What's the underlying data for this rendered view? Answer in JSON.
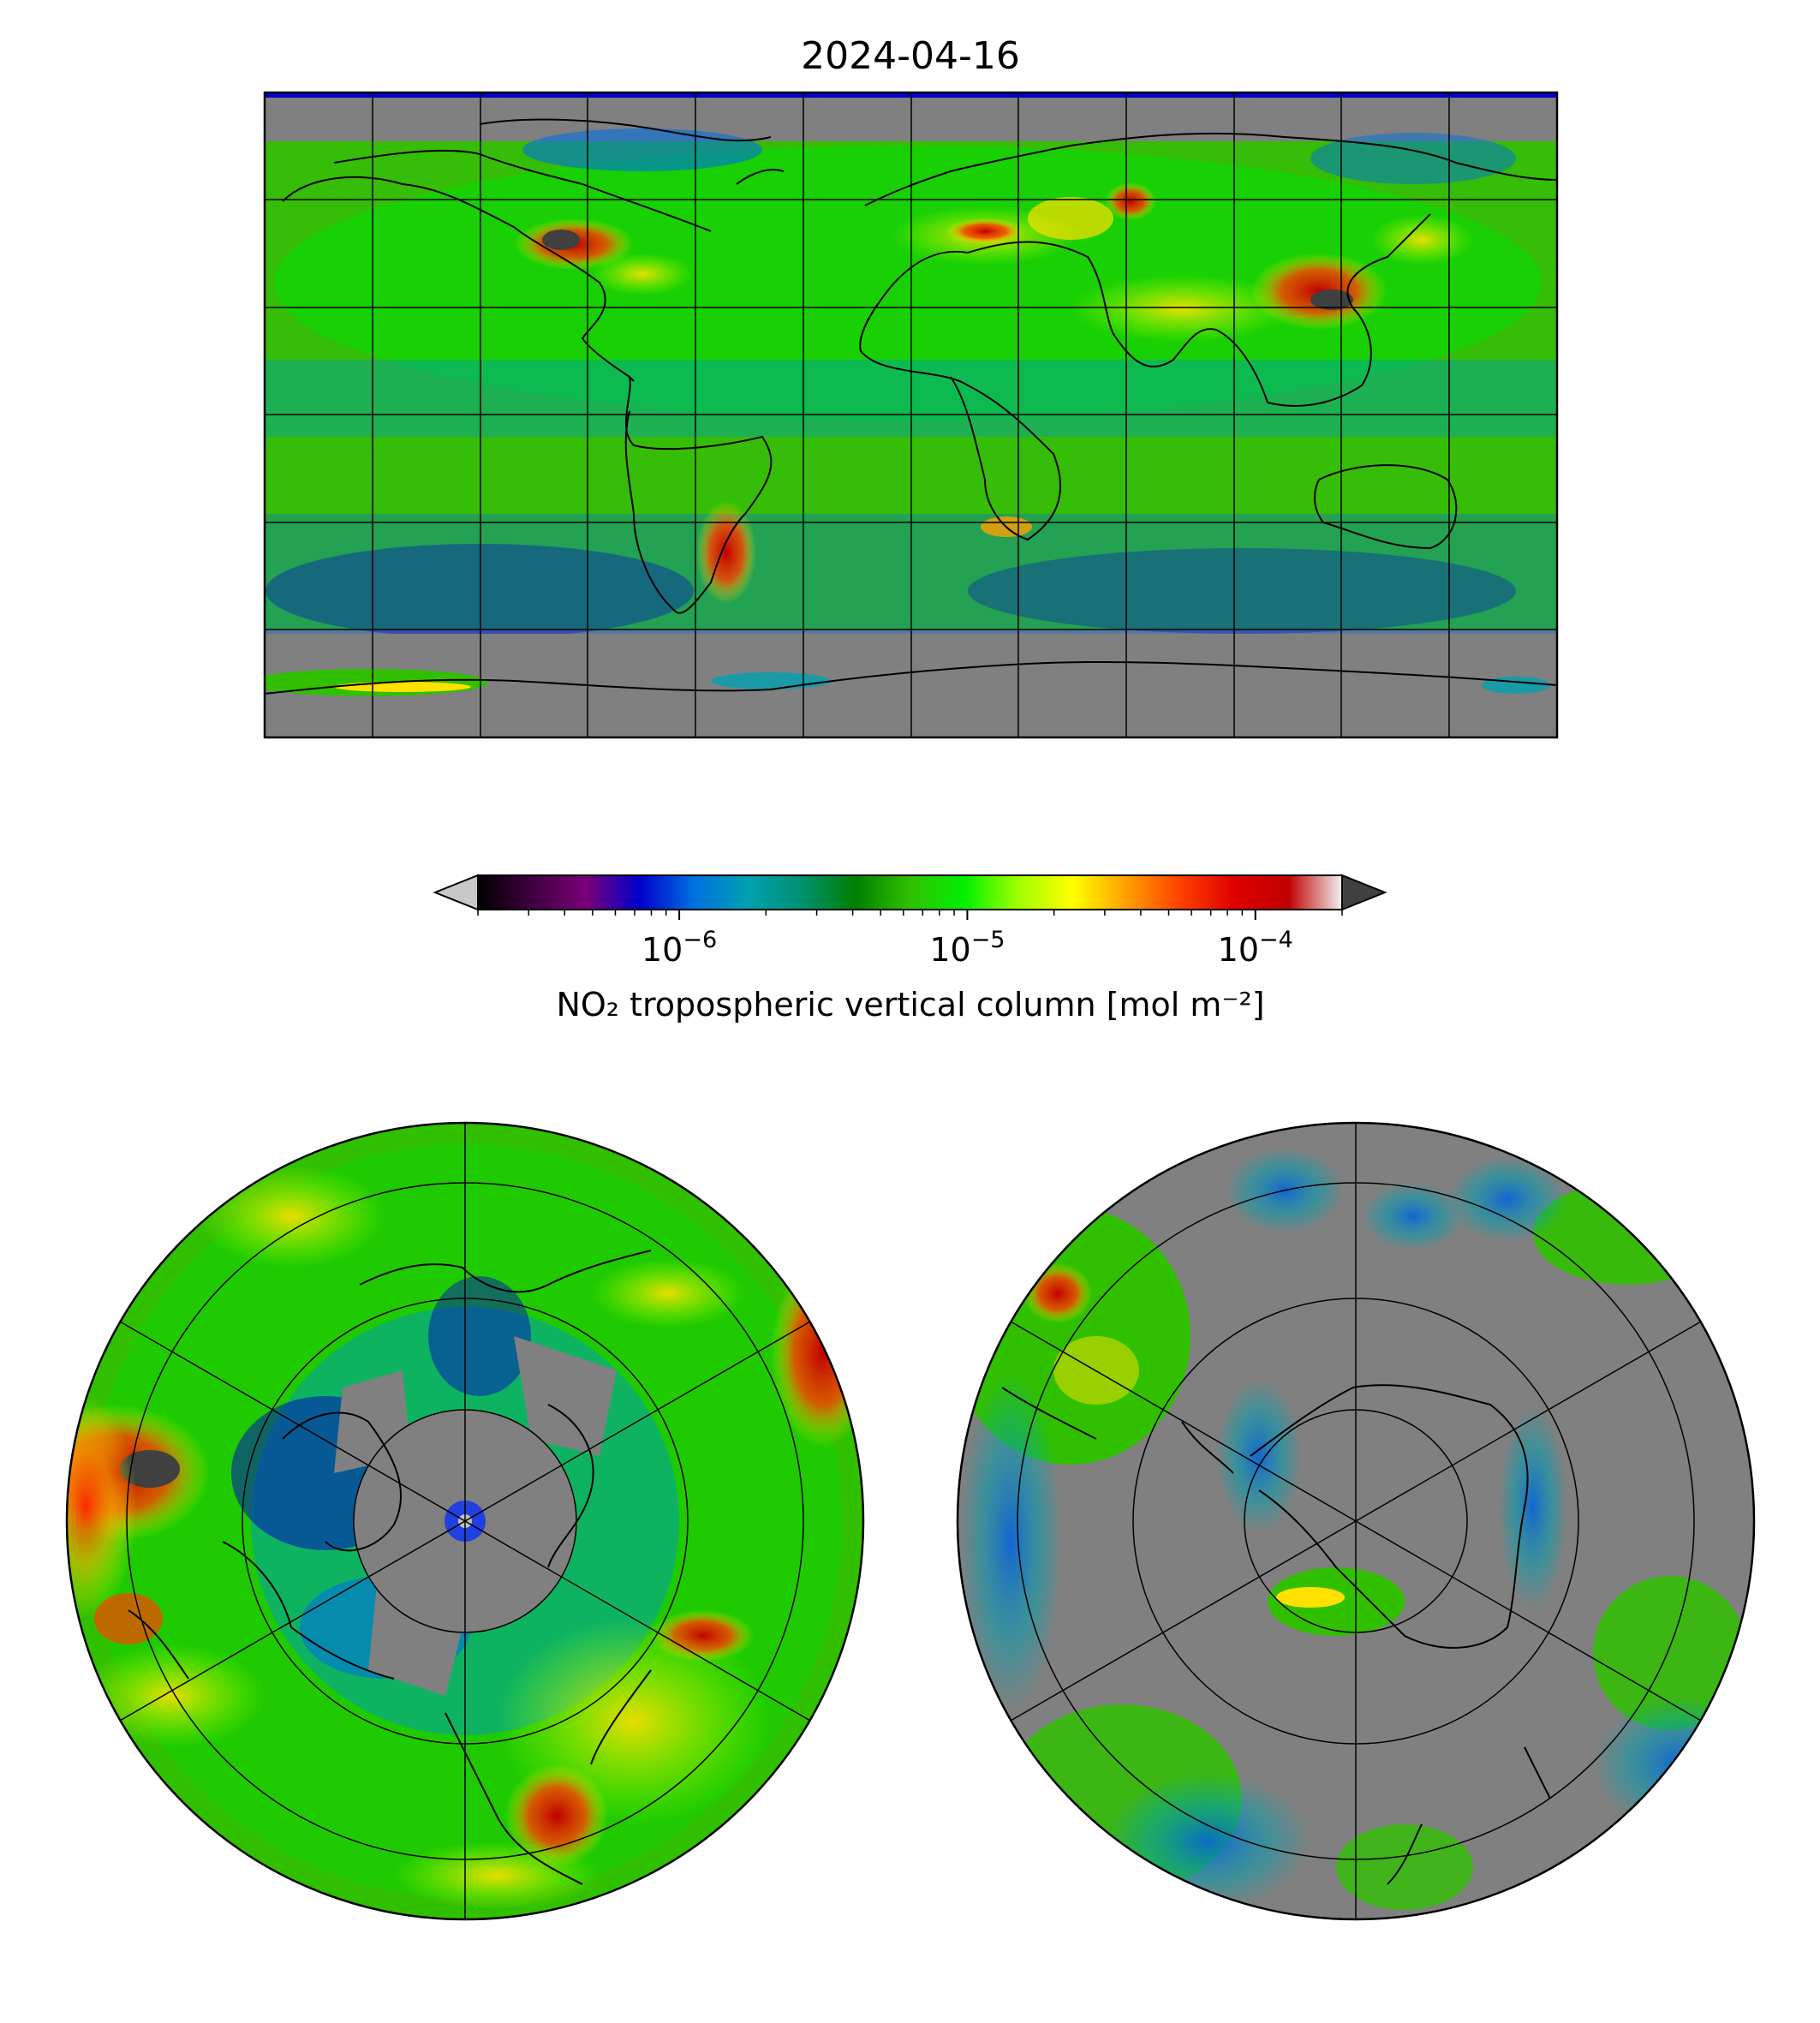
{
  "title": "2024-04-16",
  "colorbar": {
    "label": "NO₂ tropospheric vertical column [mol m⁻²]",
    "scale": "log",
    "range": [
      2e-07,
      0.0002
    ],
    "extend": "both",
    "ticks": [
      {
        "value": 1e-06,
        "base": "10",
        "exponent": "−6"
      },
      {
        "value": 1e-05,
        "base": "10",
        "exponent": "−5"
      },
      {
        "value": 0.0001,
        "base": "10",
        "exponent": "−4"
      }
    ],
    "colors": [
      "#000000",
      "#400040",
      "#7a007a",
      "#0000cc",
      "#0070e0",
      "#00a0b0",
      "#009070",
      "#008000",
      "#30c000",
      "#00f000",
      "#a0ff00",
      "#ffff00",
      "#ffa000",
      "#ff4000",
      "#e00000",
      "#c00000",
      "#f0f0f0"
    ],
    "under_color": "#c8c8c8",
    "over_color": "#404040",
    "missing_color": "#808080"
  },
  "panels": [
    {
      "name": "global",
      "projection": "plate-carree",
      "gridlines": "30-degree"
    },
    {
      "name": "north-pole",
      "projection": "north-polar-stereographic"
    },
    {
      "name": "south-pole",
      "projection": "south-polar-stereographic"
    }
  ]
}
